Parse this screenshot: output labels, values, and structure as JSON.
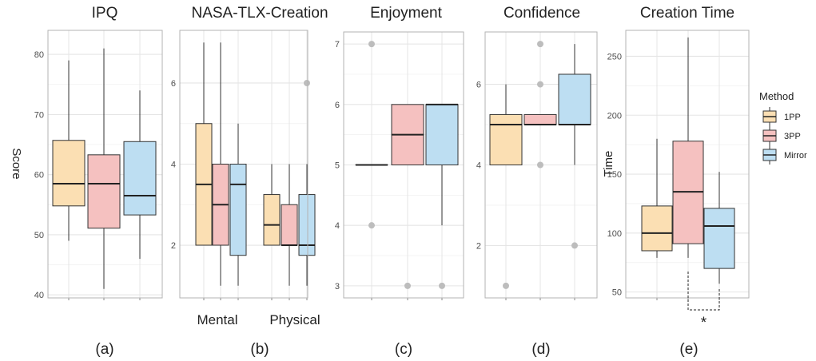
{
  "chart_data": [
    {
      "type": "box",
      "title": "IPQ",
      "ylabel": "Score",
      "caption": "(a)",
      "ylim": [
        39.5,
        84
      ],
      "yticks": [
        40,
        50,
        60,
        70,
        80
      ],
      "groups": [
        {
          "label": "",
          "boxes": [
            {
              "series": "1PP",
              "min": 49,
              "q1": 54.8,
              "median": 58.5,
              "q3": 65.7,
              "max": 79,
              "outliers": []
            },
            {
              "series": "3PP",
              "min": 41,
              "q1": 51.1,
              "median": 58.5,
              "q3": 63.3,
              "max": 81,
              "outliers": []
            },
            {
              "series": "Mirror",
              "min": 46,
              "q1": 53.3,
              "median": 56.5,
              "q3": 65.5,
              "max": 74,
              "outliers": []
            }
          ]
        }
      ]
    },
    {
      "type": "box",
      "title": "NASA-TLX-Creation",
      "ylabel": "",
      "caption": "(b)",
      "ylim": [
        0.7,
        7.3
      ],
      "yticks": [
        2,
        4,
        6
      ],
      "groups": [
        {
          "label": "Mental",
          "boxes": [
            {
              "series": "1PP",
              "min": 2,
              "q1": 2,
              "median": 3.5,
              "q3": 5,
              "max": 7,
              "outliers": []
            },
            {
              "series": "3PP",
              "min": 1,
              "q1": 2,
              "median": 3,
              "q3": 4,
              "max": 7,
              "outliers": []
            },
            {
              "series": "Mirror",
              "min": 1,
              "q1": 1.75,
              "median": 3.5,
              "q3": 4,
              "max": 5,
              "outliers": []
            }
          ]
        },
        {
          "label": "Physical",
          "boxes": [
            {
              "series": "1PP",
              "min": 2,
              "q1": 2,
              "median": 2.5,
              "q3": 3.25,
              "max": 4,
              "outliers": []
            },
            {
              "series": "3PP",
              "min": 1,
              "q1": 2,
              "median": 2,
              "q3": 3,
              "max": 4,
              "outliers": []
            },
            {
              "series": "Mirror",
              "min": 1,
              "q1": 1.75,
              "median": 2,
              "q3": 3.25,
              "max": 4,
              "outliers": [
                6
              ]
            }
          ]
        }
      ]
    },
    {
      "type": "box",
      "title": "Enjoyment",
      "ylabel": "",
      "caption": "(c)",
      "ylim": [
        2.8,
        7.2
      ],
      "yticks": [
        3,
        4,
        5,
        6,
        7
      ],
      "groups": [
        {
          "label": "",
          "boxes": [
            {
              "series": "1PP",
              "min": 5,
              "q1": 5,
              "median": 5,
              "q3": 5,
              "max": 5,
              "outliers": [
                7,
                4
              ]
            },
            {
              "series": "3PP",
              "min": 5,
              "q1": 5,
              "median": 5.5,
              "q3": 6,
              "max": 6,
              "outliers": [
                3
              ]
            },
            {
              "series": "Mirror",
              "min": 4,
              "q1": 5,
              "median": 6,
              "q3": 6,
              "max": 6,
              "outliers": [
                3
              ]
            }
          ]
        }
      ]
    },
    {
      "type": "box",
      "title": "Confidence",
      "ylabel": "",
      "caption": "(d)",
      "ylim": [
        0.7,
        7.3
      ],
      "yticks": [
        2,
        4,
        6
      ],
      "groups": [
        {
          "label": "",
          "boxes": [
            {
              "series": "1PP",
              "min": 4,
              "q1": 4,
              "median": 5,
              "q3": 5.25,
              "max": 6,
              "outliers": [
                1
              ]
            },
            {
              "series": "3PP",
              "min": 5,
              "q1": 5,
              "median": 5,
              "q3": 5.25,
              "max": 5.25,
              "outliers": [
                7,
                6,
                4
              ]
            },
            {
              "series": "Mirror",
              "min": 4,
              "q1": 5,
              "median": 5,
              "q3": 6.25,
              "max": 7,
              "outliers": [
                2
              ]
            }
          ]
        }
      ]
    },
    {
      "type": "box",
      "title": "Creation Time",
      "ylabel": "Time",
      "caption": "(e)",
      "ylim": [
        45,
        272
      ],
      "yticks": [
        50,
        100,
        150,
        200,
        250
      ],
      "significance": "*",
      "groups": [
        {
          "label": "",
          "boxes": [
            {
              "series": "1PP",
              "min": 79,
              "q1": 85,
              "median": 100,
              "q3": 123,
              "max": 180,
              "outliers": []
            },
            {
              "series": "3PP",
              "min": 79,
              "q1": 91,
              "median": 135,
              "q3": 178,
              "max": 266,
              "outliers": []
            },
            {
              "series": "Mirror",
              "min": 57,
              "q1": 70,
              "median": 106,
              "q3": 121,
              "max": 152,
              "outliers": []
            }
          ]
        }
      ]
    }
  ],
  "legend": {
    "title": "Method",
    "items": [
      {
        "label": "1PP",
        "color": "#fbdfb3"
      },
      {
        "label": "3PP",
        "color": "#f5c1c0"
      },
      {
        "label": "Mirror",
        "color": "#bddef2"
      }
    ]
  },
  "colors": {
    "1PP": "#fbdfb3",
    "3PP": "#f5c1c0",
    "Mirror": "#bddef2",
    "outlier": "#bdbdbd",
    "panel_border": "#b3b3b3",
    "grid": "#e5e5e5"
  }
}
